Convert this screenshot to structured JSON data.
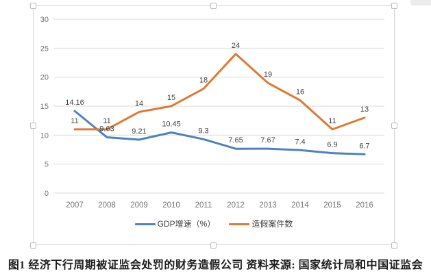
{
  "chart_data": {
    "type": "line",
    "categories": [
      "2007",
      "2008",
      "2009",
      "2010",
      "2011",
      "2012",
      "2013",
      "2014",
      "2015",
      "2016"
    ],
    "series": [
      {
        "name": "GDP增速（%）",
        "color": "#4e81bd",
        "values": [
          14.16,
          9.63,
          9.21,
          10.45,
          9.3,
          7.65,
          7.67,
          7.4,
          6.9,
          6.7
        ]
      },
      {
        "name": "造假案件数",
        "color": "#dd7a33",
        "values": [
          11,
          11,
          14,
          15,
          18,
          24,
          19,
          16,
          11,
          13
        ]
      }
    ],
    "title": "",
    "xlabel": "",
    "ylabel": "",
    "ylim": [
      0,
      30
    ],
    "yticks": [
      0,
      5,
      10,
      15,
      20,
      25,
      30
    ],
    "grid": true,
    "legend_position": "bottom",
    "data_labels": true
  },
  "caption": "图1 经济下行周期被证监会处罚的财务造假公司 资料来源: 国家统计局和中国证监会",
  "colors": {
    "gridline": "#d9d9d9",
    "axis_text": "#737373",
    "data_label_text": "#3f3f3f",
    "selection_frame": "#d2d2d2"
  }
}
